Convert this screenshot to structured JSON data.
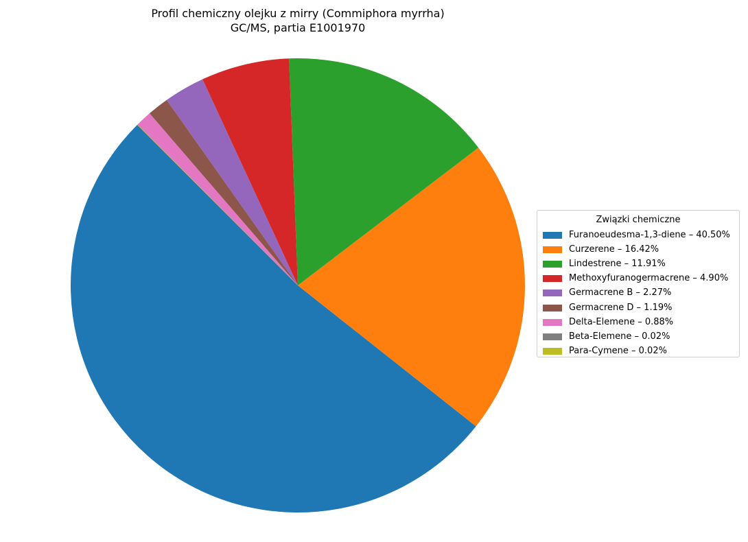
{
  "chart_data": {
    "type": "pie",
    "title": "Profil chemiczny olejku z mirry (Commiphora myrrha)",
    "subtitle": "GC/MS, partia E1001970",
    "legend_title": "Związki chemiczne",
    "legend_placement": "center-right",
    "start_angle_deg": 135,
    "direction": "counterclockwise",
    "slices": [
      {
        "label": "Furanoeudesma-1,3-diene – 40.50%",
        "name": "Furanoeudesma-1,3-diene",
        "value": 40.5,
        "color": "#1f77b4"
      },
      {
        "label": "Curzerene – 16.42%",
        "name": "Curzerene",
        "value": 16.42,
        "color": "#ff7f0e"
      },
      {
        "label": "Lindestrene – 11.91%",
        "name": "Lindestrene",
        "value": 11.91,
        "color": "#2ca02c"
      },
      {
        "label": "Methoxyfuranogermacrene – 4.90%",
        "name": "Methoxyfuranogermacrene",
        "value": 4.9,
        "color": "#d62728"
      },
      {
        "label": "Germacrene B – 2.27%",
        "name": "Germacrene B",
        "value": 2.27,
        "color": "#9467bd"
      },
      {
        "label": "Germacrene D – 1.19%",
        "name": "Germacrene D",
        "value": 1.19,
        "color": "#8c564b"
      },
      {
        "label": "Delta-Elemene – 0.88%",
        "name": "Delta-Elemene",
        "value": 0.88,
        "color": "#e377c2"
      },
      {
        "label": "Beta-Elemene – 0.02%",
        "name": "Beta-Elemene",
        "value": 0.02,
        "color": "#7f7f7f"
      },
      {
        "label": "Para-Cymene – 0.02%",
        "name": "Para-Cymene",
        "value": 0.02,
        "color": "#bcbd22"
      }
    ]
  }
}
